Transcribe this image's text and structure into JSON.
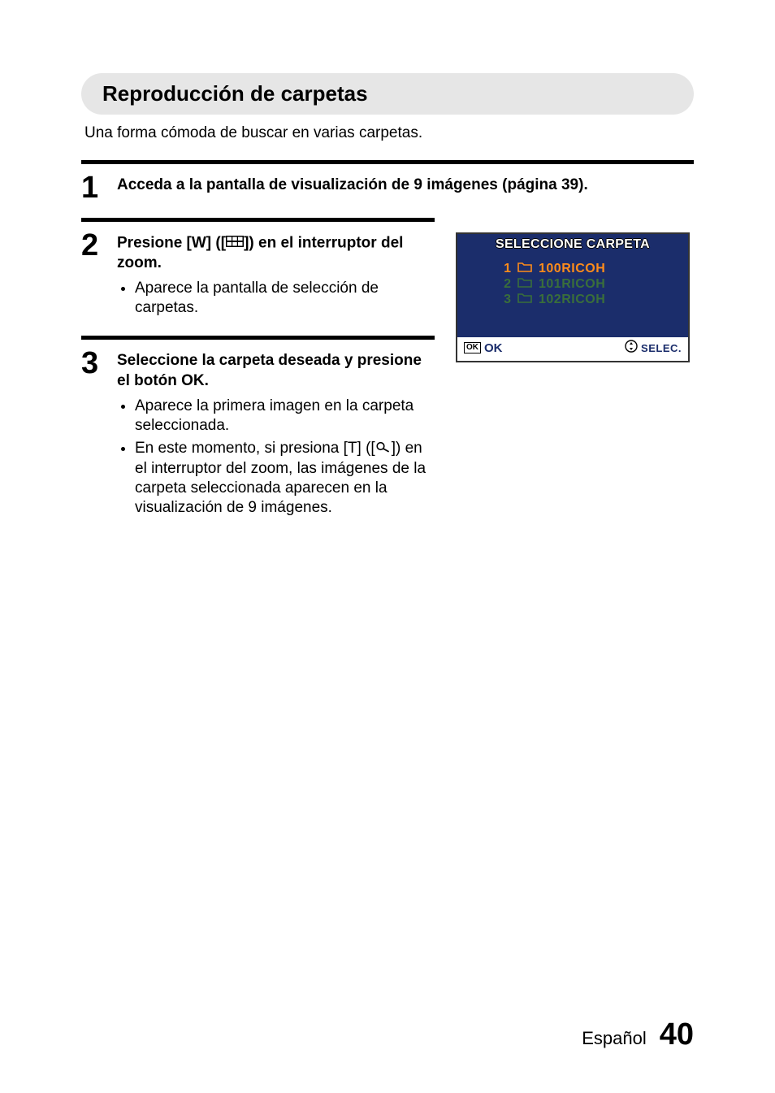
{
  "title": "Reproducción de carpetas",
  "intro": "Una forma cómoda de buscar en varias carpetas.",
  "steps": {
    "s1": {
      "num": "1",
      "instr": "Acceda a la pantalla de visualización de 9 imágenes (página 39)."
    },
    "s2": {
      "num": "2",
      "instr_pre": "Presione [W] ([",
      "instr_post": "]) en el interruptor del zoom.",
      "bullet1": "Aparece la pantalla de selección de carpetas."
    },
    "s3": {
      "num": "3",
      "instr": "Seleccione la carpeta deseada y presione el botón OK.",
      "bullet1": "Aparece la primera imagen en la carpeta seleccionada.",
      "bullet2_pre": "En este momento, si presiona [T] ([",
      "bullet2_post": "]) en el interruptor del zoom, las imágenes de la carpeta seleccionada aparecen en la visualización de 9 imágenes."
    }
  },
  "lcd": {
    "header": "SELECCIONE CARPETA",
    "rows": [
      {
        "n": "1",
        "name": "100RICOH",
        "selected": true
      },
      {
        "n": "2",
        "name": "101RICOH",
        "selected": false
      },
      {
        "n": "3",
        "name": "102RICOH",
        "selected": false
      }
    ],
    "ok_badge": "OK",
    "ok_text": "OK",
    "select_text": "SELEC.",
    "colors": {
      "selected": "#ff8c1a",
      "normal": "#3a6f3a",
      "bg": "#1b2d6b"
    }
  },
  "footer": {
    "lang": "Español",
    "page": "40"
  }
}
